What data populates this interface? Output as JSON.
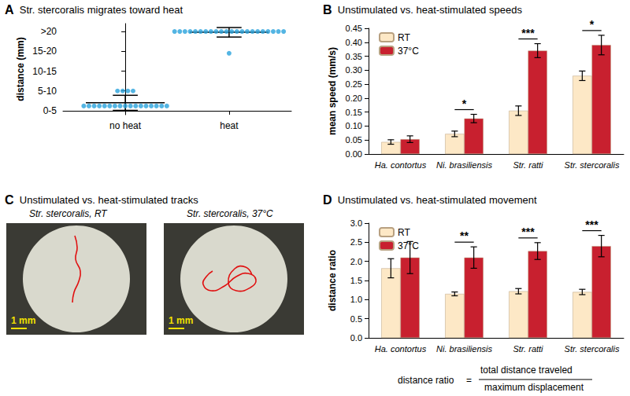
{
  "chart_data": [
    {
      "type": "scatter",
      "panel": "A",
      "title": "Str. stercoralis migrates toward heat",
      "y_label": "distance (mm)",
      "categories": [
        "no heat",
        "heat"
      ],
      "values": [
        [
          1.2,
          1.2,
          1.2,
          1.2,
          1.2,
          1.2,
          1.2,
          1.2,
          1.2,
          1.2,
          1.2,
          1.2,
          1.2,
          1.2,
          1.2,
          1.2,
          1.2,
          5,
          5,
          5,
          5
        ],
        [
          20,
          20,
          20,
          20,
          20,
          20,
          20,
          20,
          20,
          20,
          20,
          20,
          20,
          20,
          20,
          20,
          20,
          20,
          20,
          20,
          20,
          20,
          14.5
        ]
      ],
      "mean": [
        2.0,
        19.8
      ],
      "error": [
        1.9,
        1.2
      ],
      "color": "#29a3dc",
      "ylim": [
        -1,
        22
      ],
      "yticks": [
        {
          "value": 0,
          "label": "0-5"
        },
        {
          "value": 5,
          "label": "5-10"
        },
        {
          "value": 10,
          "label": "10-15"
        },
        {
          "value": 15,
          "label": "15-20"
        },
        {
          "value": 20,
          "label": ">20"
        }
      ],
      "grid": false
    },
    {
      "type": "bar",
      "panel": "B",
      "title": "Unstimulated vs. heat-stimulated speeds",
      "y_label": "mean speed (mm/s)",
      "categories": [
        "Ha. contortus",
        "Ni. brasiliensis",
        "Str. ratti",
        "Str. stercoralis"
      ],
      "series": [
        {
          "name": "RT",
          "color": "#fde8c6",
          "values": [
            0.043,
            0.072,
            0.155,
            0.28
          ],
          "error": [
            0.008,
            0.01,
            0.017,
            0.017
          ]
        },
        {
          "name": "37°C",
          "color": "#c8202f",
          "values": [
            0.053,
            0.127,
            0.37,
            0.39
          ],
          "error": [
            0.012,
            0.015,
            0.025,
            0.035
          ]
        }
      ],
      "significance": [
        null,
        "*",
        "***",
        "*"
      ],
      "ylim": [
        0,
        0.45
      ],
      "yticks": [
        {
          "value": 0,
          "label": "0.00"
        },
        {
          "value": 0.05,
          "label": "0.05"
        },
        {
          "value": 0.1,
          "label": "0.10"
        },
        {
          "value": 0.15,
          "label": "0.15"
        },
        {
          "value": 0.2,
          "label": "0.20"
        },
        {
          "value": 0.25,
          "label": "0.25"
        },
        {
          "value": 0.3,
          "label": "0.30"
        },
        {
          "value": 0.35,
          "label": "0.35"
        },
        {
          "value": 0.4,
          "label": "0.40"
        },
        {
          "value": 0.45,
          "label": "0.45"
        }
      ],
      "legend": "upper left",
      "grid": false
    },
    {
      "type": "bar",
      "panel": "D",
      "title": "Unstimulated vs. heat-stimulated movement",
      "y_label": "distance ratio",
      "categories": [
        "Ha. contortus",
        "Ni. brasiliensis",
        "Str. ratti",
        "Str. stercoralis"
      ],
      "series": [
        {
          "name": "RT",
          "color": "#fde8c6",
          "values": [
            1.82,
            1.15,
            1.22,
            1.2
          ],
          "error": [
            0.25,
            0.05,
            0.07,
            0.07
          ]
        },
        {
          "name": "37°C",
          "color": "#c8202f",
          "values": [
            2.1,
            2.1,
            2.27,
            2.4
          ],
          "error": [
            0.42,
            0.28,
            0.22,
            0.28
          ]
        }
      ],
      "significance": [
        null,
        "**",
        "***",
        "***"
      ],
      "ylim": [
        0,
        3
      ],
      "yticks": [
        {
          "value": 0,
          "label": "0.0"
        },
        {
          "value": 0.5,
          "label": "0.5"
        },
        {
          "value": 1,
          "label": "1.0"
        },
        {
          "value": 1.5,
          "label": "1.5"
        },
        {
          "value": 2,
          "label": "2.0"
        },
        {
          "value": 2.5,
          "label": "2.5"
        },
        {
          "value": 3,
          "label": "3.0"
        }
      ],
      "formula": {
        "text": "distance ratio",
        "equals": "=",
        "numerator": "total distance traveled",
        "denominator": "maximum displacement"
      },
      "legend": "upper left",
      "grid": false
    }
  ],
  "panel_c": {
    "panel": "C",
    "title": "Unstimulated vs. heat-stimulated tracks",
    "images": [
      {
        "label": "Str. stercoralis, RT",
        "scale_bar": "1 mm"
      },
      {
        "label": "Str. stercoralis, 37°C",
        "scale_bar": "1 mm"
      }
    ]
  }
}
